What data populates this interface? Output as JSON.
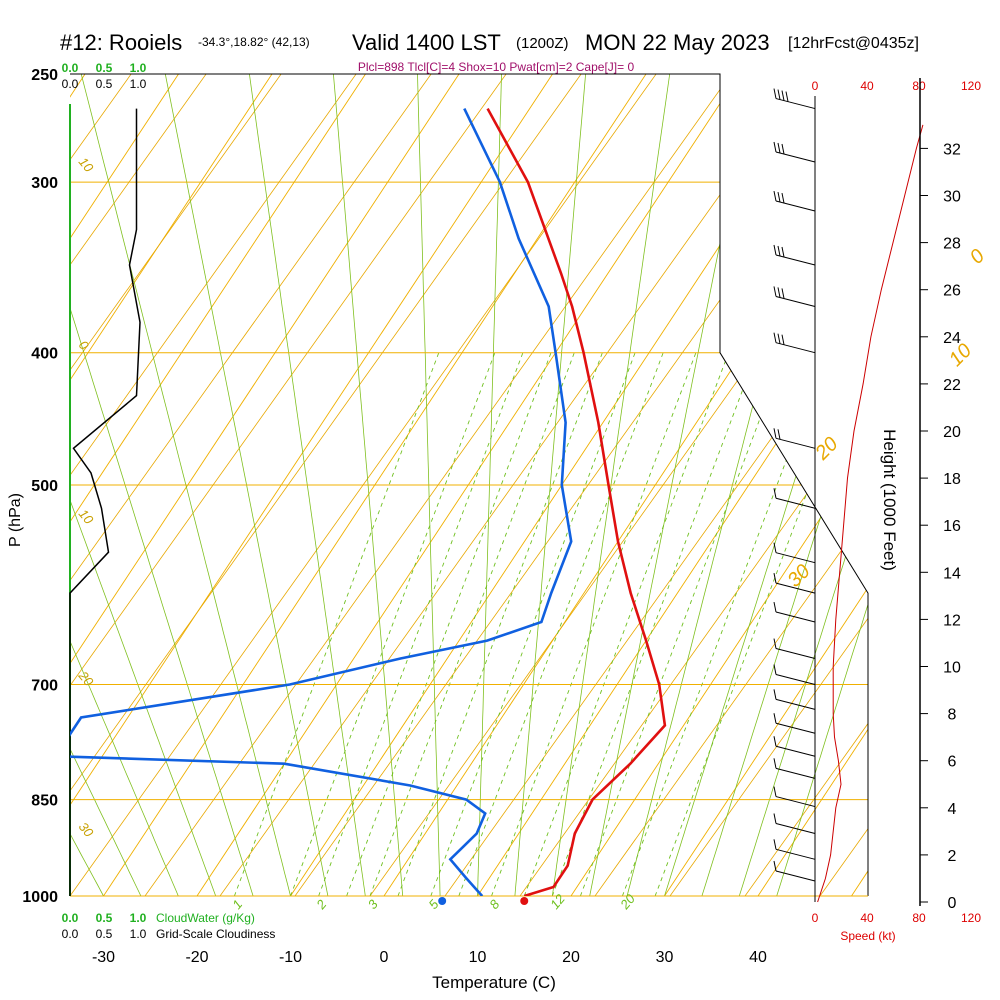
{
  "header": {
    "station": "#12: Rooiels",
    "coords": "-34.3°,18.82° (42,13)",
    "valid": "Valid 1400 LST",
    "utc": "(1200Z)",
    "date": "MON 22 May 2023",
    "forecast": "[12hrFcst@0435z]",
    "params": "Plcl=898 Tlcl[C]=4 Shox=10 Pwat[cm]=2 Cape[J]= 0"
  },
  "axes": {
    "xlabel": "Temperature (C)",
    "ylabel": "P (hPa)",
    "right_label": "Height (1000 Feet)",
    "speed_label": "Speed (kt)",
    "cloudwater_label": "CloudWater (g/Kg)",
    "cloudiness_label": "Grid-Scale Cloudiness"
  },
  "colors": {
    "temperature": "#e01010",
    "dewpoint": "#1060e0",
    "isotherm": "#f0b000",
    "dry_adiabat": "#e8a800",
    "moist_adiabat": "#80c020",
    "mixing_ratio": "#70c020",
    "cloud_scale": "#20b020",
    "wind_speed": "#cc0000",
    "params_text": "#a0106a"
  },
  "chart_data": {
    "type": "skew-t",
    "x_ticks": [
      -30,
      -20,
      -10,
      0,
      10,
      20,
      30,
      40
    ],
    "x_tick_labels": [
      "-30",
      "-20",
      "-10",
      "0",
      "10",
      "20",
      "30",
      "40"
    ],
    "pressure_ticks": [
      250,
      300,
      400,
      500,
      700,
      850,
      1000
    ],
    "pressure_tick_labels": [
      "250",
      "300",
      "400",
      "500",
      "700",
      "850",
      "1000"
    ],
    "height_ticks_kft": [
      0,
      2,
      4,
      6,
      8,
      10,
      12,
      14,
      16,
      18,
      20,
      22,
      24,
      26,
      28,
      30,
      32
    ],
    "height_tick_labels": [
      "0",
      "2",
      "4",
      "6",
      "8",
      "10",
      "12",
      "14",
      "16",
      "18",
      "20",
      "22",
      "24",
      "26",
      "28",
      "30",
      "32"
    ],
    "speed_ticks_kt": [
      0,
      40,
      80,
      120
    ],
    "speed_tick_labels": [
      "0",
      "40",
      "80",
      "120"
    ],
    "cloud_scale_labels": [
      "0.0",
      "0.5",
      "1.0"
    ],
    "mixing_ratio_labels": [
      {
        "text": "1",
        "t": -16,
        "p": 990
      },
      {
        "text": "2",
        "t": -7,
        "p": 990
      },
      {
        "text": "3",
        "t": -1.5,
        "p": 990
      },
      {
        "text": "5",
        "t": 5,
        "p": 990
      },
      {
        "text": "8",
        "t": 11.5,
        "p": 990
      },
      {
        "text": "12",
        "t": 18,
        "p": 990
      },
      {
        "text": "20",
        "t": 25.5,
        "p": 990
      }
    ],
    "moist_adiabat_labels": [
      {
        "text": "10",
        "t": -34,
        "p": 290
      },
      {
        "text": "0",
        "t": -34,
        "p": 395
      },
      {
        "text": "10",
        "t": -34,
        "p": 525
      },
      {
        "text": "20",
        "t": -34,
        "p": 690
      },
      {
        "text": "30",
        "t": -34,
        "p": 890
      }
    ],
    "dry_adiabat_labels": [
      {
        "text": "0",
        "t": 35,
        "p": 345
      },
      {
        "text": "10",
        "t": 40,
        "p": 410
      },
      {
        "text": "20",
        "t": 43,
        "p": 480
      },
      {
        "text": "30",
        "t": 49,
        "p": 595
      }
    ],
    "temperature_profile": [
      {
        "p": 1000,
        "t": 15.0
      },
      {
        "p": 985,
        "t": 17.5
      },
      {
        "p": 950,
        "t": 17.5
      },
      {
        "p": 900,
        "t": 16.0
      },
      {
        "p": 850,
        "t": 15.5
      },
      {
        "p": 800,
        "t": 17.0
      },
      {
        "p": 750,
        "t": 18.0
      },
      {
        "p": 700,
        "t": 14.5
      },
      {
        "p": 650,
        "t": 10.0
      },
      {
        "p": 600,
        "t": 5.0
      },
      {
        "p": 550,
        "t": 0.0
      },
      {
        "p": 500,
        "t": -5.0
      },
      {
        "p": 450,
        "t": -10.5
      },
      {
        "p": 400,
        "t": -17.0
      },
      {
        "p": 370,
        "t": -21.5
      },
      {
        "p": 350,
        "t": -25.0
      },
      {
        "p": 300,
        "t": -35.0
      },
      {
        "p": 265,
        "t": -44.5
      }
    ],
    "dewpoint_profile": [
      {
        "p": 1000,
        "t": 10.5
      },
      {
        "p": 990,
        "t": 9.5
      },
      {
        "p": 970,
        "t": 7.5
      },
      {
        "p": 940,
        "t": 4.5
      },
      {
        "p": 920,
        "t": 5.0
      },
      {
        "p": 900,
        "t": 5.5
      },
      {
        "p": 870,
        "t": 5.0
      },
      {
        "p": 850,
        "t": 2.0
      },
      {
        "p": 830,
        "t": -5.0
      },
      {
        "p": 800,
        "t": -20.0
      },
      {
        "p": 790,
        "t": -45.0
      },
      {
        "p": 740,
        "t": -45.0
      },
      {
        "p": 700,
        "t": -25.0
      },
      {
        "p": 670,
        "t": -15.0
      },
      {
        "p": 650,
        "t": -7.0
      },
      {
        "p": 630,
        "t": -2.5
      },
      {
        "p": 600,
        "t": -3.5
      },
      {
        "p": 550,
        "t": -5.0
      },
      {
        "p": 500,
        "t": -10.0
      },
      {
        "p": 450,
        "t": -14.0
      },
      {
        "p": 400,
        "t": -20.0
      },
      {
        "p": 370,
        "t": -24.0
      },
      {
        "p": 330,
        "t": -32.0
      },
      {
        "p": 300,
        "t": -38.0
      },
      {
        "p": 265,
        "t": -47.0
      }
    ],
    "surface_temperature": 15.0,
    "surface_dewpoint": 10.5,
    "cloudiness_profile": [
      {
        "p": 1000,
        "v": 0.0
      },
      {
        "p": 600,
        "v": 0.0
      },
      {
        "p": 560,
        "v": 0.55
      },
      {
        "p": 520,
        "v": 0.45
      },
      {
        "p": 490,
        "v": 0.3
      },
      {
        "p": 470,
        "v": 0.05
      },
      {
        "p": 430,
        "v": 0.95
      },
      {
        "p": 380,
        "v": 1.0
      },
      {
        "p": 345,
        "v": 0.85
      },
      {
        "p": 325,
        "v": 0.95
      },
      {
        "p": 265,
        "v": 0.95
      }
    ],
    "wind_speed_profile": [
      {
        "h": 0,
        "v": 2
      },
      {
        "h": 1,
        "v": 8
      },
      {
        "h": 2,
        "v": 12
      },
      {
        "h": 4,
        "v": 16
      },
      {
        "h": 5,
        "v": 20
      },
      {
        "h": 6,
        "v": 18
      },
      {
        "h": 7,
        "v": 15
      },
      {
        "h": 8,
        "v": 14
      },
      {
        "h": 9,
        "v": 14
      },
      {
        "h": 10,
        "v": 14
      },
      {
        "h": 12,
        "v": 16
      },
      {
        "h": 14,
        "v": 19
      },
      {
        "h": 16,
        "v": 22
      },
      {
        "h": 18,
        "v": 25
      },
      {
        "h": 20,
        "v": 30
      },
      {
        "h": 22,
        "v": 37
      },
      {
        "h": 24,
        "v": 43
      },
      {
        "h": 26,
        "v": 51
      },
      {
        "h": 28,
        "v": 60
      },
      {
        "h": 30,
        "v": 69
      },
      {
        "h": 32,
        "v": 78
      },
      {
        "h": 33,
        "v": 83
      }
    ],
    "wind_barbs": [
      {
        "p": 265,
        "kt": 35
      },
      {
        "p": 290,
        "kt": 30
      },
      {
        "p": 315,
        "kt": 30
      },
      {
        "p": 345,
        "kt": 30
      },
      {
        "p": 370,
        "kt": 30
      },
      {
        "p": 400,
        "kt": 25
      },
      {
        "p": 470,
        "kt": 15
      },
      {
        "p": 520,
        "kt": 10
      },
      {
        "p": 570,
        "kt": 10
      },
      {
        "p": 600,
        "kt": 10
      },
      {
        "p": 630,
        "kt": 10
      },
      {
        "p": 670,
        "kt": 10
      },
      {
        "p": 700,
        "kt": 10
      },
      {
        "p": 730,
        "kt": 10
      },
      {
        "p": 760,
        "kt": 10
      },
      {
        "p": 790,
        "kt": 10
      },
      {
        "p": 820,
        "kt": 10
      },
      {
        "p": 860,
        "kt": 10
      },
      {
        "p": 900,
        "kt": 10
      },
      {
        "p": 940,
        "kt": 10
      },
      {
        "p": 975,
        "kt": 10
      }
    ]
  }
}
